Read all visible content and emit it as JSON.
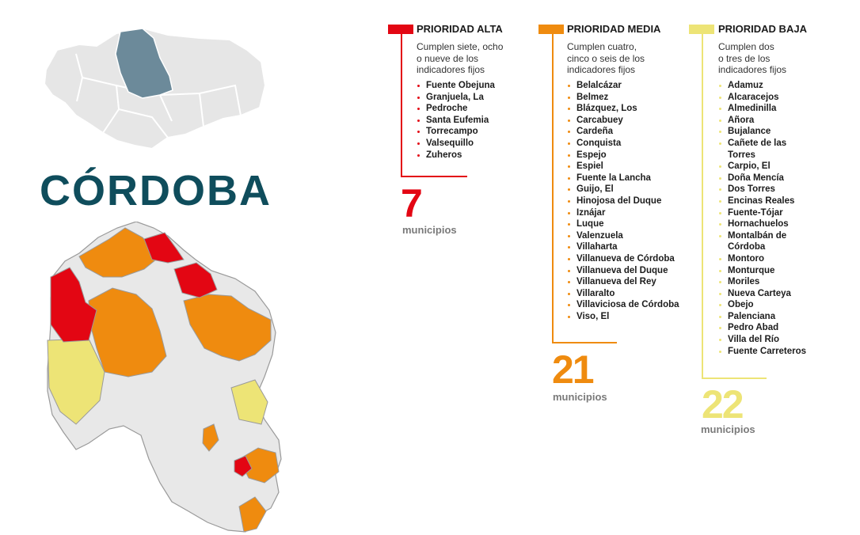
{
  "title": "CÓRDOBA",
  "colors": {
    "alta": "#e30613",
    "media": "#ef8b0f",
    "baja": "#ede476",
    "none": "#e8e8e8",
    "highlight": "#6c8a9a",
    "title": "#0f4d5c"
  },
  "alta": {
    "label": "PRIORIDAD ALTA",
    "description": [
      "Cumplen siete, ocho",
      "o nueve  de los",
      "indicadores fijos"
    ],
    "items": [
      "Fuente Obejuna",
      "Granjuela, La",
      "Pedroche",
      "Santa Eufemia",
      "Torrecampo",
      "Valsequillo",
      "Zuheros"
    ],
    "count": "7",
    "count_label": "municipios"
  },
  "media": {
    "label": "PRIORIDAD MEDIA",
    "description": [
      "Cumplen cuatro,",
      "cinco o seis de los",
      "indicadores fijos"
    ],
    "items": [
      "Belalcázar",
      "Belmez",
      "Blázquez, Los",
      "Carcabuey",
      "Cardeña",
      "Conquista",
      "Espejo",
      "Espiel",
      "Fuente la Lancha",
      "Guijo, El",
      "Hinojosa del Duque",
      "Iznájar",
      "Luque",
      "Valenzuela",
      "Villaharta",
      "Villanueva de Córdoba",
      "Villanueva del Duque",
      "Villanueva del Rey",
      "Villaralto",
      "Villaviciosa de Córdoba",
      "Viso, El"
    ],
    "count": "21",
    "count_label": "municipios"
  },
  "baja": {
    "label": "PRIORIDAD BAJA",
    "description": [
      "Cumplen dos",
      "o tres de los",
      "indicadores fijos"
    ],
    "items": [
      "Adamuz",
      "Alcaracejos",
      "Almedinilla",
      "Añora",
      "Bujalance",
      "Cañete de las",
      "Torres",
      "Carpio, El",
      "Doña Mencía",
      "Dos Torres",
      "Encinas Reales",
      "Fuente-Tójar",
      "Hornachuelos",
      "Montalbán de",
      "Córdoba",
      "Montoro",
      "Monturque",
      "Moriles",
      "Nueva Carteya",
      "Obejo",
      "Palenciana",
      "Pedro Abad",
      "Villa del Río",
      "Fuente Carreteros"
    ],
    "count": "22",
    "count_label": "municipios"
  }
}
